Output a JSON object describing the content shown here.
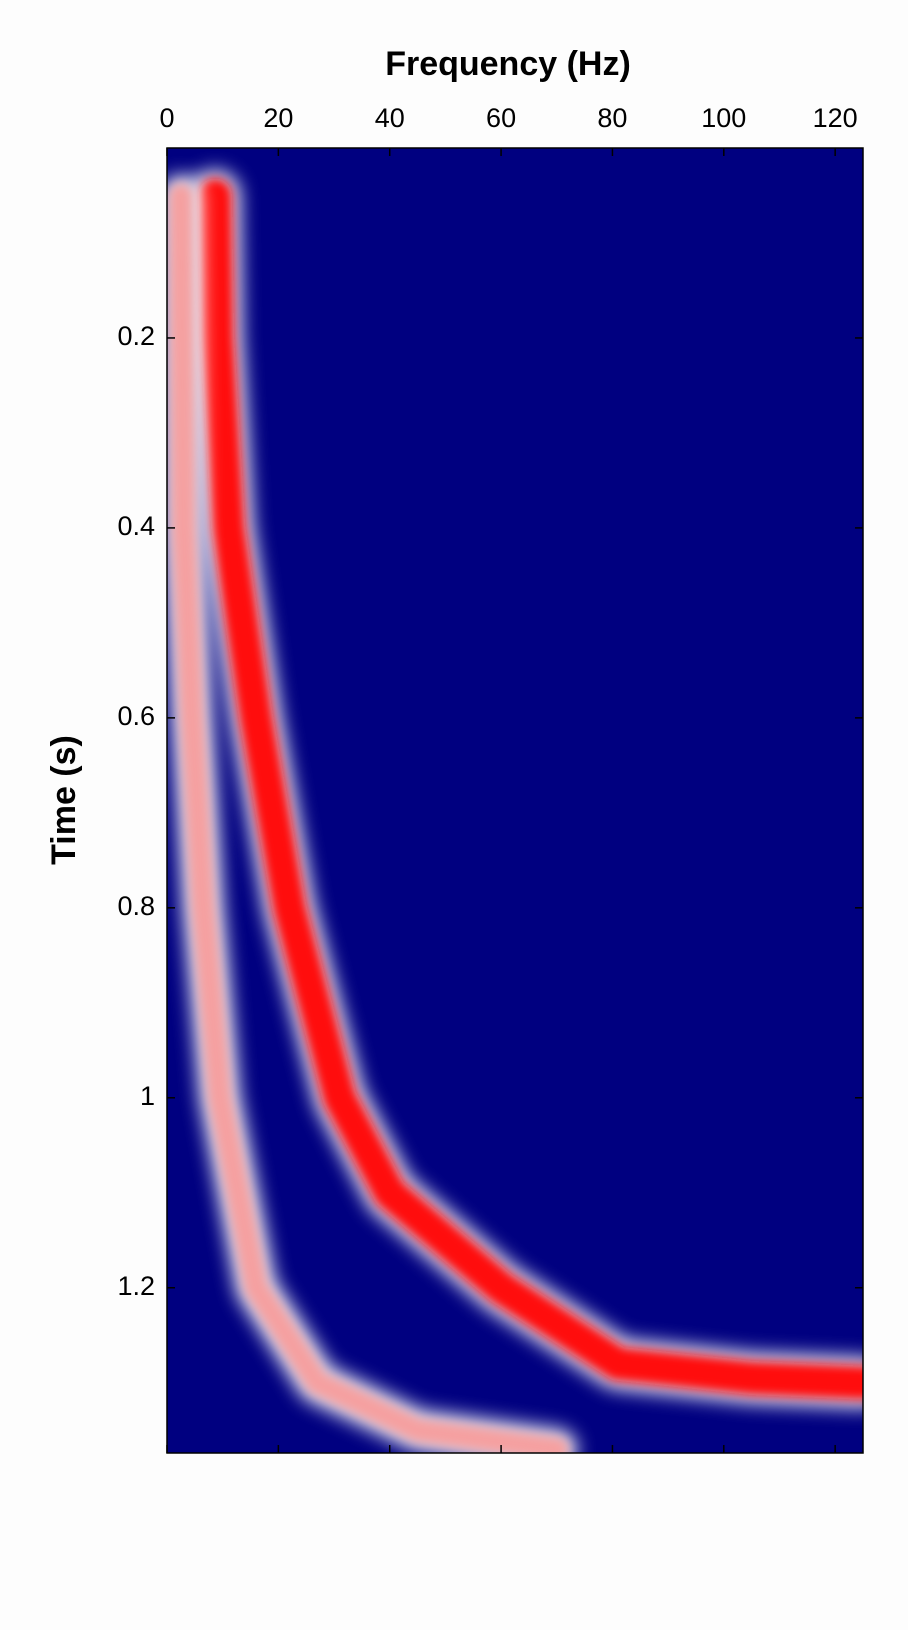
{
  "chart_data": {
    "type": "line",
    "xlabel": "Frequency (Hz)",
    "ylabel": "Time (s)",
    "xlim": [
      0,
      125
    ],
    "xticks": [
      0,
      20,
      40,
      60,
      80,
      100,
      120
    ],
    "x_axis_position": "top",
    "ylim": [
      0,
      1.374
    ],
    "yticks": [
      0.2,
      0.4,
      0.6,
      0.8,
      1,
      1.2
    ],
    "y_reversed": true,
    "background": "#000080",
    "series": [
      {
        "color": "#ff1010",
        "x": [
          8.6,
          9,
          11,
          16,
          22,
          31,
          40,
          60,
          81,
          105,
          125
        ],
        "values": [
          0.05,
          0.2,
          0.4,
          0.6,
          0.8,
          1.0,
          1.1,
          1.2,
          1.28,
          1.295,
          1.3
        ]
      },
      {
        "color": "#f5a0a0",
        "x": [
          2.5,
          3,
          4.5,
          6.5,
          9.5,
          16,
          27,
          45,
          70
        ],
        "values": [
          0.05,
          0.4,
          0.6,
          0.8,
          1.0,
          1.2,
          1.3,
          1.35,
          1.37
        ]
      }
    ]
  }
}
